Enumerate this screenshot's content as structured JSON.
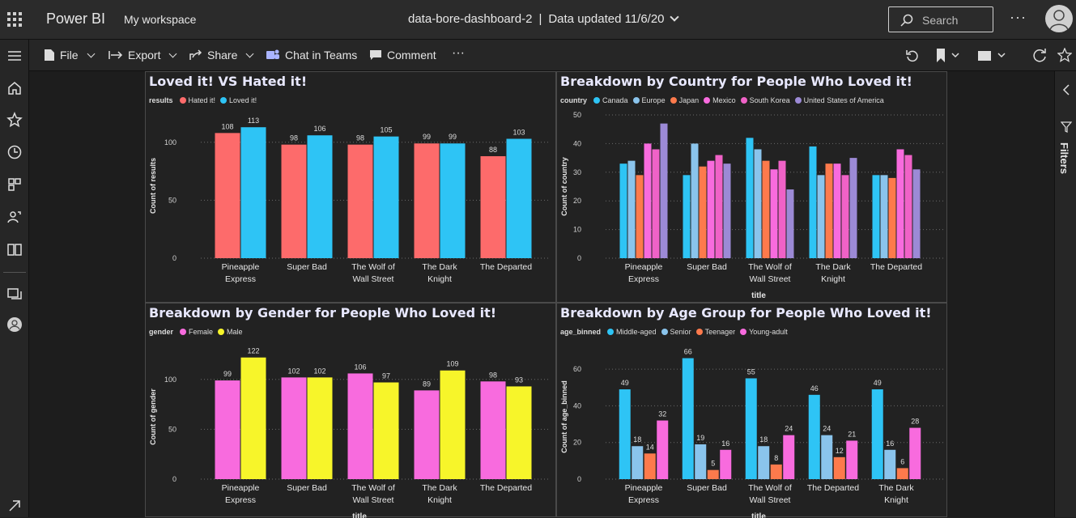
{
  "header": {
    "app_name": "Power BI",
    "workspace": "My workspace",
    "report_name": "data-bore-dashboard-2",
    "data_updated": "Data updated 11/6/20",
    "search_placeholder": "Search",
    "more": "···"
  },
  "toolbar": {
    "file": "File",
    "export": "Export",
    "share": "Share",
    "chat_in_teams": "Chat in Teams",
    "comment": "Comment",
    "more": "···"
  },
  "filters_pane": {
    "label": "Filters"
  },
  "colors": {
    "hated": "#fd6b6b",
    "loved": "#2ec4f5",
    "canada": "#2ec4f5",
    "europe": "#8ac4ec",
    "japan": "#fd7a4c",
    "mexico": "#f86bde",
    "south_korea": "#f062c7",
    "usa": "#9c8ad6",
    "female": "#f86bde",
    "male": "#f7f52a",
    "middle_aged": "#2ec4f5",
    "senior": "#8ac4ec",
    "teenager": "#fd7a4c",
    "young_adult": "#f86bde"
  },
  "chart_data": [
    {
      "type": "bar",
      "title": "Loved it! VS Hated it!",
      "legend_title": "results",
      "ylabel": "Count of results",
      "xlabel": "",
      "yticks": [
        0,
        50,
        100
      ],
      "ylim": [
        0,
        125
      ],
      "categories": [
        [
          "Pineapple",
          "Express"
        ],
        [
          "Super Bad"
        ],
        [
          "The Wolf of",
          "Wall Street"
        ],
        [
          "The Dark",
          "Knight"
        ],
        [
          "The Departed"
        ]
      ],
      "series": [
        {
          "name": "Hated it!",
          "color": "#fd6b6b",
          "values": [
            108,
            98,
            98,
            99,
            88
          ]
        },
        {
          "name": "Loved it!",
          "color": "#2ec4f5",
          "values": [
            113,
            106,
            105,
            99,
            103
          ]
        }
      ],
      "data_labels": true,
      "grid": true
    },
    {
      "type": "bar",
      "title": "Breakdown by Country for People Who Loved it!",
      "legend_title": "country",
      "ylabel": "Count of country",
      "xlabel": "title",
      "yticks": [
        0,
        10,
        20,
        30,
        40,
        50
      ],
      "ylim": [
        0,
        50
      ],
      "categories": [
        [
          "Pineapple",
          "Express"
        ],
        [
          "Super Bad"
        ],
        [
          "The Wolf of",
          "Wall Street"
        ],
        [
          "The Dark",
          "Knight"
        ],
        [
          "The Departed"
        ]
      ],
      "series": [
        {
          "name": "Canada",
          "color": "#2ec4f5",
          "values": [
            33,
            29,
            42,
            39,
            29
          ]
        },
        {
          "name": "Europe",
          "color": "#8ac4ec",
          "values": [
            34,
            40,
            38,
            29,
            29
          ]
        },
        {
          "name": "Japan",
          "color": "#fd7a4c",
          "values": [
            29,
            32,
            34,
            33,
            28
          ]
        },
        {
          "name": "Mexico",
          "color": "#f86bde",
          "values": [
            40,
            34,
            31,
            33,
            38
          ]
        },
        {
          "name": "South Korea",
          "color": "#f062c7",
          "values": [
            38,
            36,
            34,
            29,
            36
          ]
        },
        {
          "name": "United States of America",
          "color": "#9c8ad6",
          "values": [
            47,
            33,
            24,
            35,
            31
          ]
        }
      ],
      "data_labels": false,
      "grid": true
    },
    {
      "type": "bar",
      "title": "Breakdown by Gender for People Who Loved it!",
      "legend_title": "gender",
      "ylabel": "Count of gender",
      "xlabel": "title",
      "yticks": [
        0,
        50,
        100
      ],
      "ylim": [
        0,
        125
      ],
      "categories": [
        [
          "Pineapple",
          "Express"
        ],
        [
          "Super Bad"
        ],
        [
          "The Wolf of",
          "Wall Street"
        ],
        [
          "The Dark",
          "Knight"
        ],
        [
          "The Departed"
        ]
      ],
      "series": [
        {
          "name": "Female",
          "color": "#f86bde",
          "values": [
            99,
            102,
            106,
            89,
            98
          ]
        },
        {
          "name": "Male",
          "color": "#f7f52a",
          "values": [
            122,
            102,
            97,
            109,
            93
          ]
        }
      ],
      "data_labels": true,
      "grid": true
    },
    {
      "type": "bar",
      "title": "Breakdown by Age Group for People Who Loved it!",
      "legend_title": "age_binned",
      "ylabel": "Count of age_binned",
      "xlabel": "title",
      "yticks": [
        0,
        20,
        40,
        60
      ],
      "ylim": [
        0,
        68
      ],
      "categories": [
        [
          "Pineapple",
          "Express"
        ],
        [
          "Super Bad"
        ],
        [
          "The Wolf of",
          "Wall Street"
        ],
        [
          "The Departed"
        ],
        [
          "The Dark",
          "Knight"
        ]
      ],
      "series": [
        {
          "name": "Middle-aged",
          "color": "#2ec4f5",
          "values": [
            49,
            66,
            55,
            46,
            49
          ]
        },
        {
          "name": "Senior",
          "color": "#8ac4ec",
          "values": [
            18,
            19,
            18,
            24,
            16
          ]
        },
        {
          "name": "Teenager",
          "color": "#fd7a4c",
          "values": [
            14,
            5,
            8,
            12,
            6
          ]
        },
        {
          "name": "Young-adult",
          "color": "#f86bde",
          "values": [
            32,
            16,
            24,
            21,
            28
          ]
        }
      ],
      "data_labels": true,
      "grid": true
    }
  ]
}
